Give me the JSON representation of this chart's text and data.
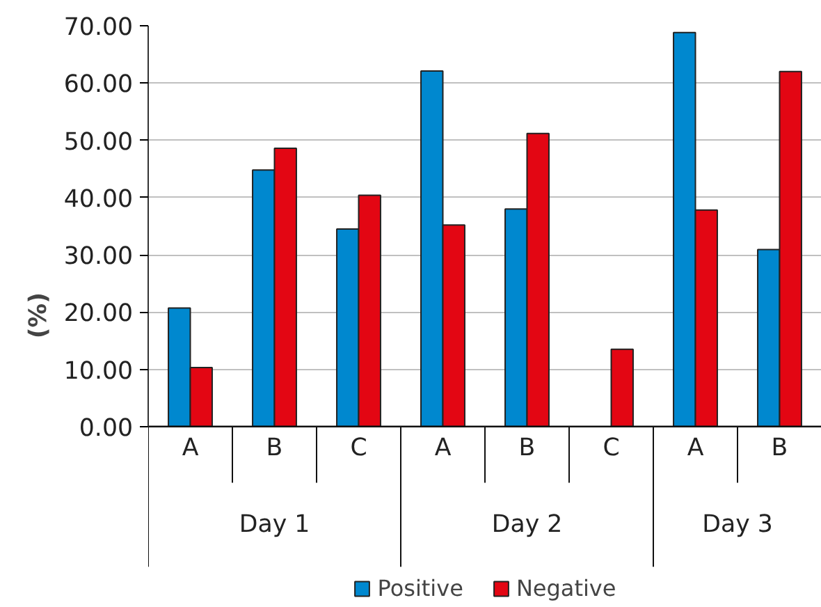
{
  "chart_data": {
    "type": "bar",
    "ylabel": "(%)",
    "categories": [
      "A",
      "B",
      "C",
      "A",
      "B",
      "C",
      "A",
      "B"
    ],
    "series": [
      {
        "name": "Positive",
        "color": "#0088cf",
        "values": [
          20.7,
          44.8,
          34.5,
          62.1,
          38.0,
          null,
          68.8,
          30.9
        ]
      },
      {
        "name": "Negative",
        "color": "#e30613",
        "values": [
          10.3,
          48.6,
          40.4,
          35.2,
          51.2,
          13.5,
          37.8,
          62.0
        ]
      }
    ],
    "annotations": [
      "Day 1",
      "Day 2",
      "Day 3"
    ],
    "ylim": [
      0,
      70
    ],
    "yticks": [
      {
        "value": 0,
        "label": "0.00"
      },
      {
        "value": 10,
        "label": "10.00"
      },
      {
        "value": 20,
        "label": "20.00"
      },
      {
        "value": 30,
        "label": "30.00"
      },
      {
        "value": 40,
        "label": "40.00"
      },
      {
        "value": 50,
        "label": "50.00"
      },
      {
        "value": 60,
        "label": "60.00"
      },
      {
        "value": 70,
        "label": "70.00"
      }
    ],
    "grid": "y",
    "legend": "bottom"
  }
}
